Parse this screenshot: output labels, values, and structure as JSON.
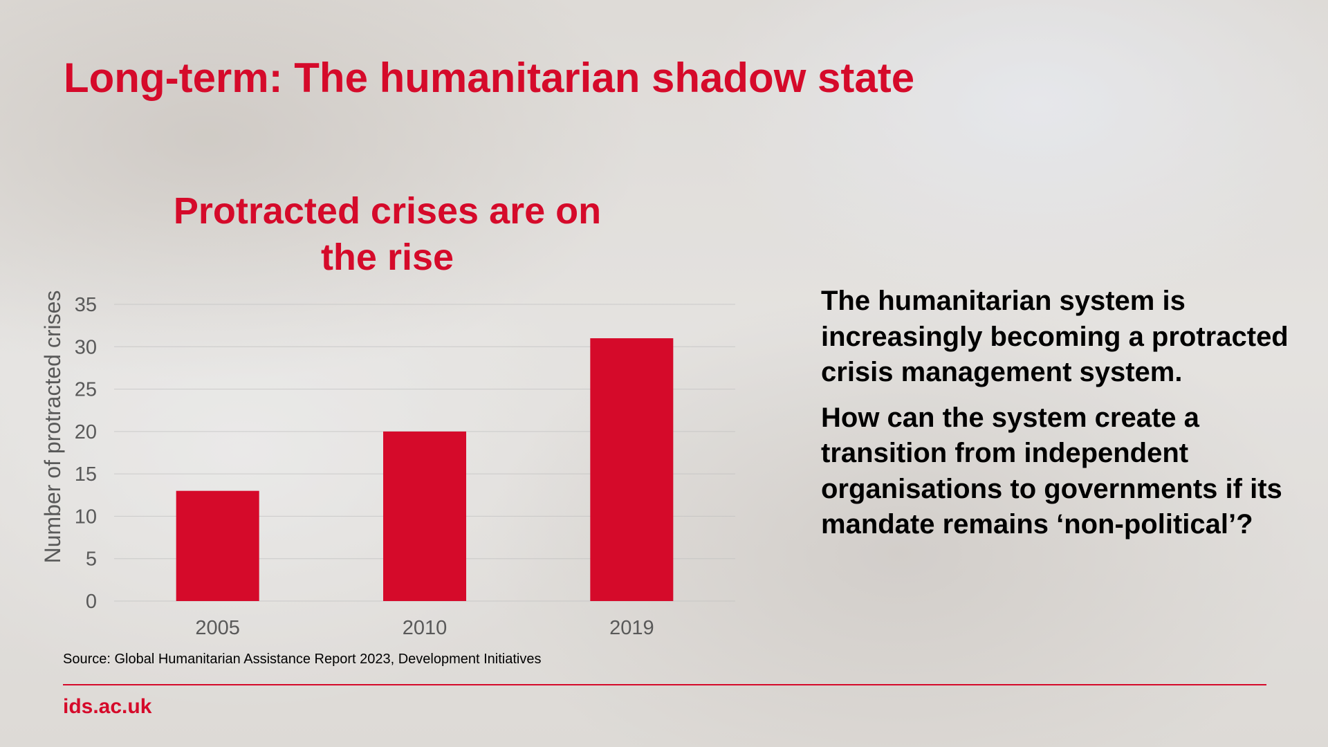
{
  "slide": {
    "title": "Long-term: The humanitarian shadow state",
    "body_paragraphs": [
      "The humanitarian system is increasingly becoming a protracted crisis management system.",
      "How can the system create a transition from independent organisations to governments if its mandate remains ‘non-political’?"
    ],
    "source": "Source: Global Humanitarian Assistance Report 2023, Development Initiatives",
    "footer_link": "ids.ac.uk"
  },
  "colors": {
    "accent": "#d50a2a",
    "text": "#000000",
    "axis_text": "#595959",
    "gridline": "#bfbfbf"
  },
  "chart_data": {
    "type": "bar",
    "title": "Protracted crises are on the rise",
    "categories": [
      "2005",
      "2010",
      "2019"
    ],
    "values": [
      13,
      20,
      31
    ],
    "xlabel": "",
    "ylabel": "Number of protracted crises",
    "ylim": [
      0,
      35
    ],
    "yticks": [
      0,
      5,
      10,
      15,
      20,
      25,
      30,
      35
    ],
    "grid": true,
    "legend": "none"
  }
}
